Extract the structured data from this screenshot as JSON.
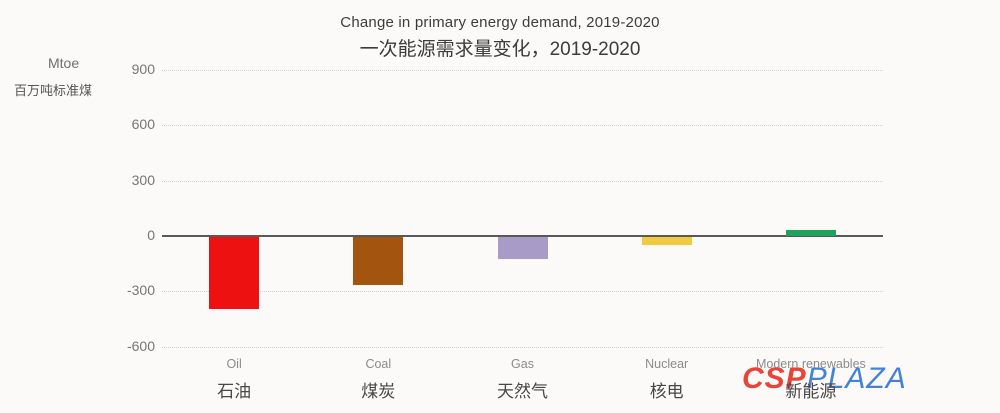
{
  "watermark": {
    "part1": "CSP",
    "part2": "PLAZA",
    "color1": "#e63c30",
    "color2": "#3a7cd8"
  },
  "chart_data": {
    "type": "bar",
    "title_en": "Change in primary energy demand, 2019-2020",
    "title_zh": "一次能源需求量变化，2019-2020",
    "unit_en": "Mtoe",
    "unit_zh": "百万吨标准煤",
    "categories_en": [
      "Oil",
      "Coal",
      "Gas",
      "Nuclear",
      "Modern renewables"
    ],
    "categories_zh": [
      "石油",
      "煤炭",
      "天然气",
      "核电",
      "新能源"
    ],
    "values": [
      -390,
      -260,
      -120,
      -45,
      30
    ],
    "bar_colors": [
      "#ee1111",
      "#a3540e",
      "#a99bc7",
      "#f1ca3e",
      "#1ea45a"
    ],
    "yticks": [
      900,
      600,
      300,
      0,
      -300,
      -600
    ],
    "ylim": [
      -700,
      980
    ],
    "grid": "horizontal-dotted",
    "zero_axis_color": "#595959",
    "background": "#fbfaf9"
  }
}
